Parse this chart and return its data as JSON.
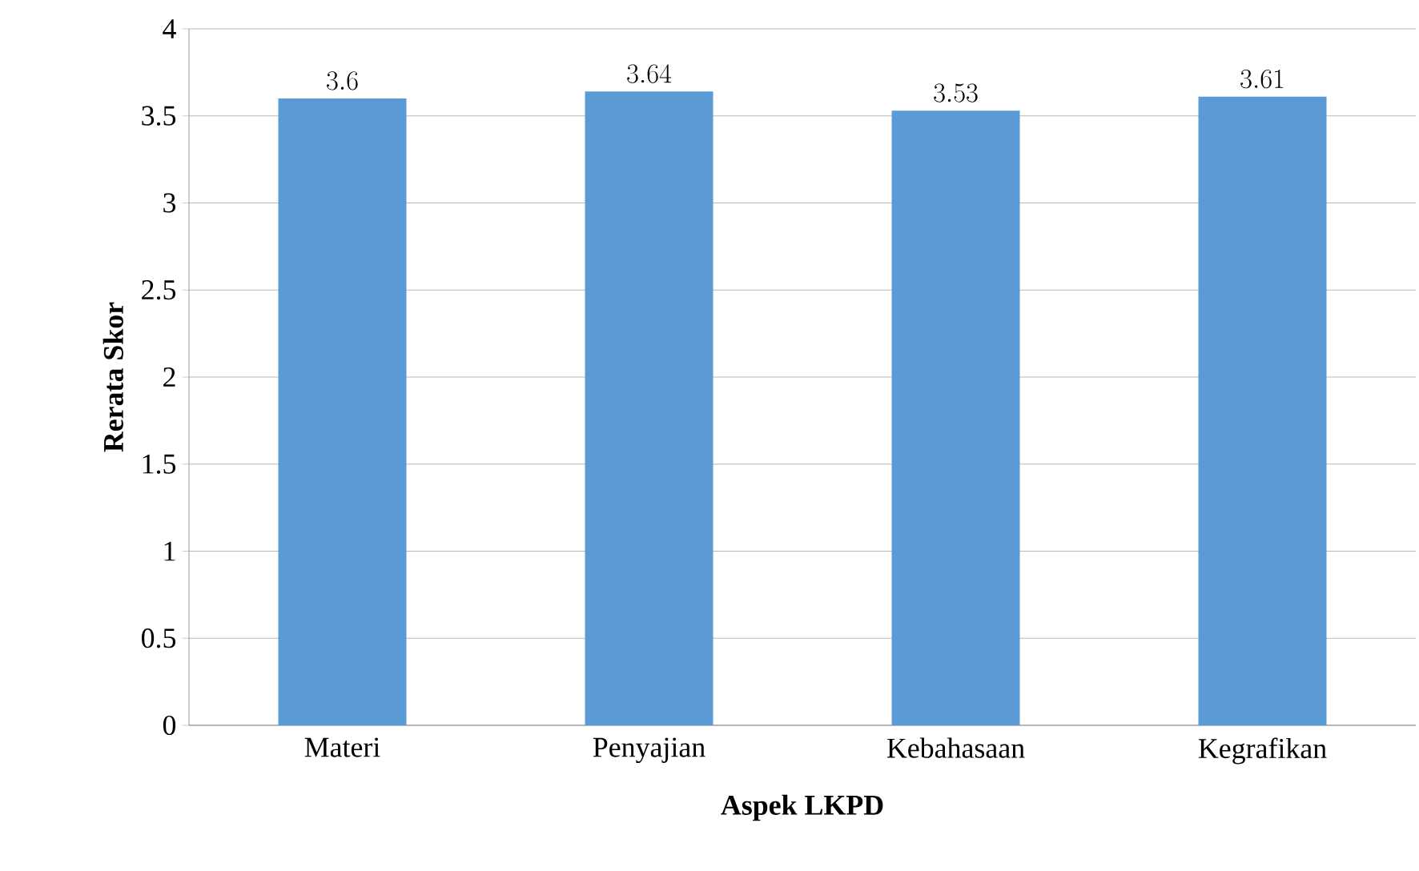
{
  "chart_data": {
    "type": "bar",
    "xlabel": "Aspek LKPD",
    "ylabel": "Rerata Skor",
    "categories": [
      "Materi",
      "Penyajian",
      "Kebahasaan",
      "Kegrafikan"
    ],
    "values": [
      3.6,
      3.64,
      3.53,
      3.61
    ],
    "color": "#5b9bd5",
    "ylim": [
      0,
      4
    ],
    "yticks": [
      0,
      0.5,
      1,
      1.5,
      2,
      2.5,
      3,
      3.5,
      4
    ],
    "grid": "y",
    "data_labels": true
  }
}
